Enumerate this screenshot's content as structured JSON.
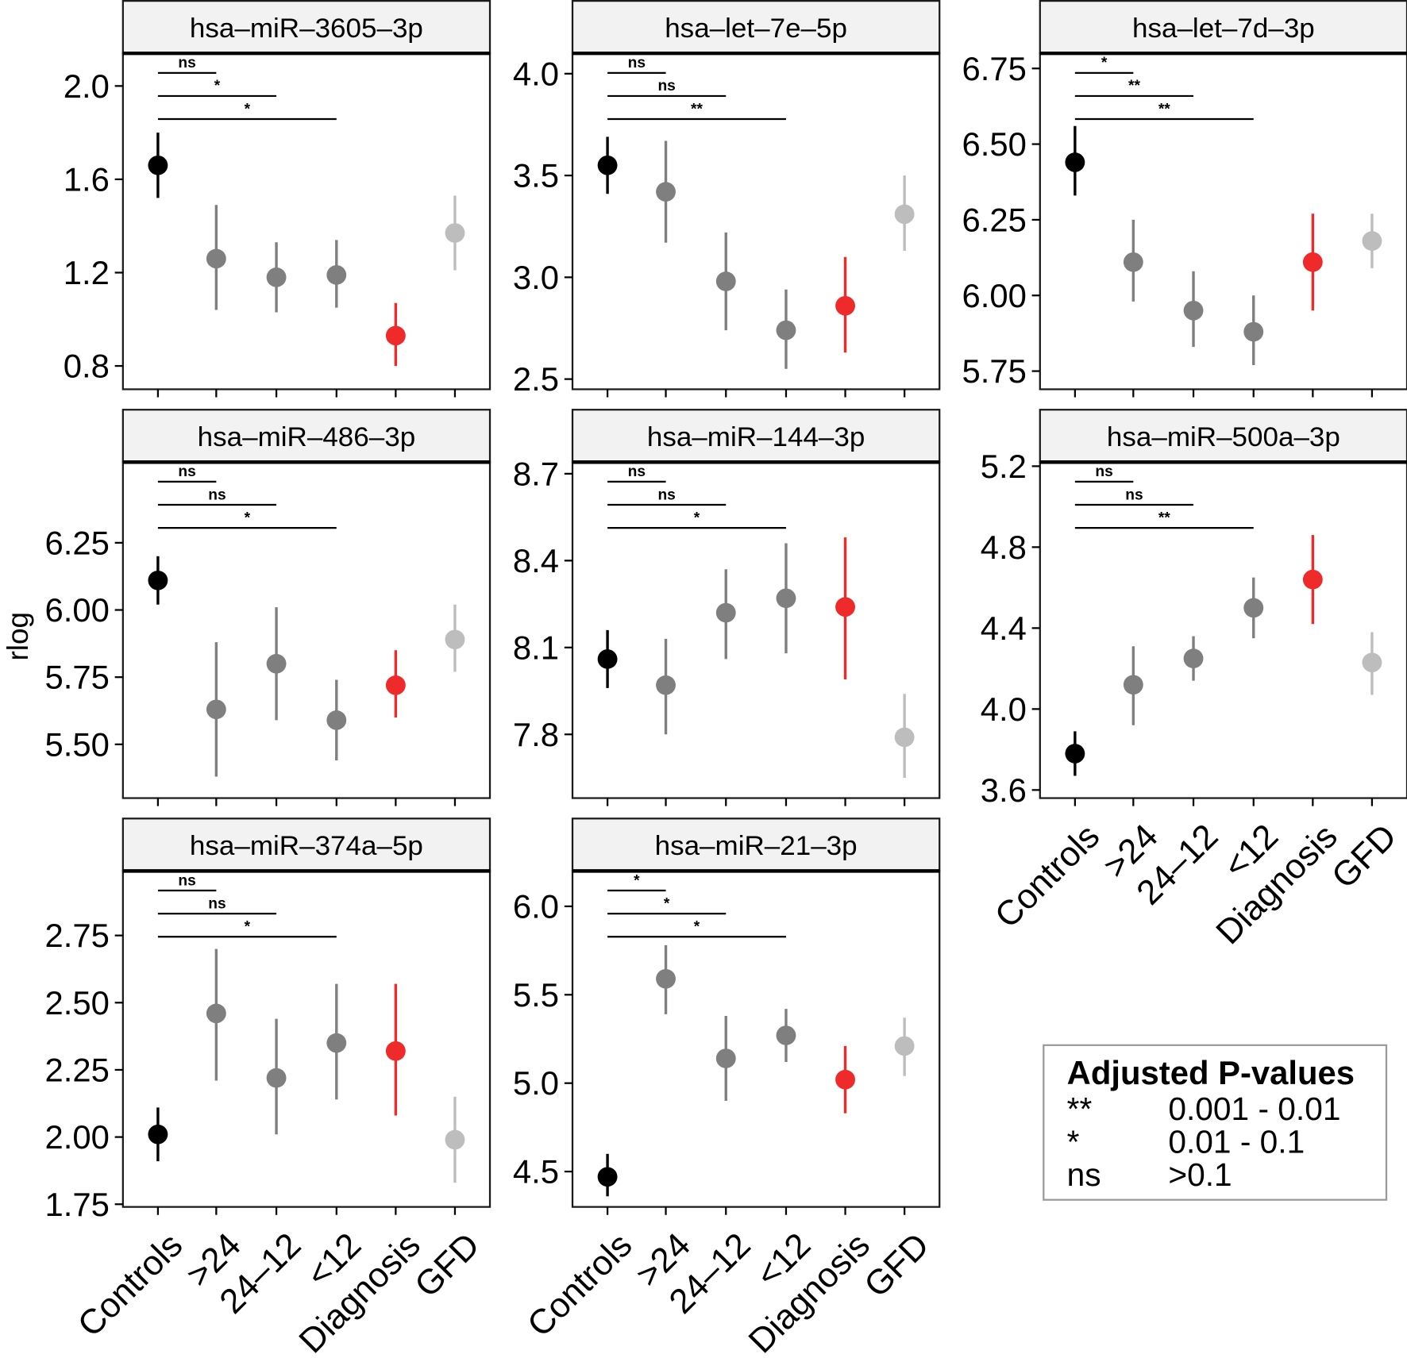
{
  "chart_data": {
    "type": "pointrange-facets",
    "y_axis_title": "rlog",
    "groups": [
      "Controls",
      ">24",
      "24–12",
      "<12",
      "Diagnosis",
      "GFD"
    ],
    "group_colors": [
      "#000000",
      "#7f7f7f",
      "#7f7f7f",
      "#7f7f7f",
      "#ee2a2a",
      "#bdbdbd"
    ],
    "panels": [
      {
        "title": "hsa–miR–3605–3p",
        "ylim": [
          0.7,
          2.14
        ],
        "yticks": [
          0.8,
          1.2,
          1.6,
          2.0
        ],
        "ytick_labels": [
          "0.8",
          "1.2",
          "1.6",
          "2.0"
        ],
        "points": [
          {
            "group": "Controls",
            "value": 1.66,
            "lower": 1.52,
            "upper": 1.8
          },
          {
            "group": ">24",
            "value": 1.26,
            "lower": 1.04,
            "upper": 1.49
          },
          {
            "group": "24–12",
            "value": 1.18,
            "lower": 1.03,
            "upper": 1.33
          },
          {
            "group": "<12",
            "value": 1.19,
            "lower": 1.05,
            "upper": 1.34
          },
          {
            "group": "Diagnosis",
            "value": 0.93,
            "lower": 0.8,
            "upper": 1.07
          },
          {
            "group": "GFD",
            "value": 1.37,
            "lower": 1.21,
            "upper": 1.53
          }
        ],
        "significance": [
          {
            "from": "Controls",
            "to": ">24",
            "label": "ns"
          },
          {
            "from": "Controls",
            "to": "24–12",
            "label": "*"
          },
          {
            "from": "Controls",
            "to": "<12",
            "label": "*"
          }
        ]
      },
      {
        "title": "hsa–let–7e–5p",
        "ylim": [
          2.45,
          4.1
        ],
        "yticks": [
          2.5,
          3.0,
          3.5,
          4.0
        ],
        "ytick_labels": [
          "2.5",
          "3.0",
          "3.5",
          "4.0"
        ],
        "points": [
          {
            "group": "Controls",
            "value": 3.55,
            "lower": 3.41,
            "upper": 3.69
          },
          {
            "group": ">24",
            "value": 3.42,
            "lower": 3.17,
            "upper": 3.67
          },
          {
            "group": "24–12",
            "value": 2.98,
            "lower": 2.74,
            "upper": 3.22
          },
          {
            "group": "<12",
            "value": 2.74,
            "lower": 2.55,
            "upper": 2.94
          },
          {
            "group": "Diagnosis",
            "value": 2.86,
            "lower": 2.63,
            "upper": 3.1
          },
          {
            "group": "GFD",
            "value": 3.31,
            "lower": 3.13,
            "upper": 3.5
          }
        ],
        "significance": [
          {
            "from": "Controls",
            "to": ">24",
            "label": "ns"
          },
          {
            "from": "Controls",
            "to": "24–12",
            "label": "ns"
          },
          {
            "from": "Controls",
            "to": "<12",
            "label": "**"
          }
        ]
      },
      {
        "title": "hsa–let–7d–3p",
        "ylim": [
          5.69,
          6.8
        ],
        "yticks": [
          5.75,
          6.0,
          6.25,
          6.5,
          6.75
        ],
        "ytick_labels": [
          "5.75",
          "6.00",
          "6.25",
          "6.50",
          "6.75"
        ],
        "points": [
          {
            "group": "Controls",
            "value": 6.44,
            "lower": 6.33,
            "upper": 6.56
          },
          {
            "group": ">24",
            "value": 6.11,
            "lower": 5.98,
            "upper": 6.25
          },
          {
            "group": "24–12",
            "value": 5.95,
            "lower": 5.83,
            "upper": 6.08
          },
          {
            "group": "<12",
            "value": 5.88,
            "lower": 5.77,
            "upper": 6.0
          },
          {
            "group": "Diagnosis",
            "value": 6.11,
            "lower": 5.95,
            "upper": 6.27
          },
          {
            "group": "GFD",
            "value": 6.18,
            "lower": 6.09,
            "upper": 6.27
          }
        ],
        "significance": [
          {
            "from": "Controls",
            "to": ">24",
            "label": "*"
          },
          {
            "from": "Controls",
            "to": "24–12",
            "label": "**"
          },
          {
            "from": "Controls",
            "to": "<12",
            "label": "**"
          }
        ]
      },
      {
        "title": "hsa–miR–486–3p",
        "ylim": [
          5.3,
          6.55
        ],
        "yticks": [
          5.5,
          5.75,
          6.0,
          6.25
        ],
        "ytick_labels": [
          "5.50",
          "5.75",
          "6.00",
          "6.25"
        ],
        "points": [
          {
            "group": "Controls",
            "value": 6.11,
            "lower": 6.02,
            "upper": 6.2
          },
          {
            "group": ">24",
            "value": 5.63,
            "lower": 5.38,
            "upper": 5.88
          },
          {
            "group": "24–12",
            "value": 5.8,
            "lower": 5.59,
            "upper": 6.01
          },
          {
            "group": "<12",
            "value": 5.59,
            "lower": 5.44,
            "upper": 5.74
          },
          {
            "group": "Diagnosis",
            "value": 5.72,
            "lower": 5.6,
            "upper": 5.85
          },
          {
            "group": "GFD",
            "value": 5.89,
            "lower": 5.77,
            "upper": 6.02
          }
        ],
        "significance": [
          {
            "from": "Controls",
            "to": ">24",
            "label": "ns"
          },
          {
            "from": "Controls",
            "to": "24–12",
            "label": "ns"
          },
          {
            "from": "Controls",
            "to": "<12",
            "label": "*"
          }
        ]
      },
      {
        "title": "hsa–miR–144–3p",
        "ylim": [
          7.58,
          8.74
        ],
        "yticks": [
          7.8,
          8.1,
          8.4,
          8.7
        ],
        "ytick_labels": [
          "7.8",
          "8.1",
          "8.4",
          "8.7"
        ],
        "points": [
          {
            "group": "Controls",
            "value": 8.06,
            "lower": 7.96,
            "upper": 8.16
          },
          {
            "group": ">24",
            "value": 7.97,
            "lower": 7.8,
            "upper": 8.13
          },
          {
            "group": "24–12",
            "value": 8.22,
            "lower": 8.06,
            "upper": 8.37
          },
          {
            "group": "<12",
            "value": 8.27,
            "lower": 8.08,
            "upper": 8.46
          },
          {
            "group": "Diagnosis",
            "value": 8.24,
            "lower": 7.99,
            "upper": 8.48
          },
          {
            "group": "GFD",
            "value": 7.79,
            "lower": 7.65,
            "upper": 7.94
          }
        ],
        "significance": [
          {
            "from": "Controls",
            "to": ">24",
            "label": "ns"
          },
          {
            "from": "Controls",
            "to": "24–12",
            "label": "ns"
          },
          {
            "from": "Controls",
            "to": "<12",
            "label": "*"
          }
        ]
      },
      {
        "title": "hsa–miR–500a–3p",
        "ylim": [
          3.56,
          5.22
        ],
        "yticks": [
          3.6,
          4.0,
          4.4,
          4.8,
          5.2
        ],
        "ytick_labels": [
          "3.6",
          "4.0",
          "4.4",
          "4.8",
          "5.2"
        ],
        "points": [
          {
            "group": "Controls",
            "value": 3.78,
            "lower": 3.67,
            "upper": 3.89
          },
          {
            "group": ">24",
            "value": 4.12,
            "lower": 3.92,
            "upper": 4.31
          },
          {
            "group": "24–12",
            "value": 4.25,
            "lower": 4.14,
            "upper": 4.36
          },
          {
            "group": "<12",
            "value": 4.5,
            "lower": 4.35,
            "upper": 4.65
          },
          {
            "group": "Diagnosis",
            "value": 4.64,
            "lower": 4.42,
            "upper": 4.86
          },
          {
            "group": "GFD",
            "value": 4.23,
            "lower": 4.07,
            "upper": 4.38
          }
        ],
        "significance": [
          {
            "from": "Controls",
            "to": ">24",
            "label": "ns"
          },
          {
            "from": "Controls",
            "to": "24–12",
            "label": "ns"
          },
          {
            "from": "Controls",
            "to": "<12",
            "label": "**"
          }
        ]
      },
      {
        "title": "hsa–miR–374a–5p",
        "ylim": [
          1.74,
          2.99
        ],
        "yticks": [
          1.75,
          2.0,
          2.25,
          2.5,
          2.75
        ],
        "ytick_labels": [
          "1.75",
          "2.00",
          "2.25",
          "2.50",
          "2.75"
        ],
        "points": [
          {
            "group": "Controls",
            "value": 2.01,
            "lower": 1.91,
            "upper": 2.11
          },
          {
            "group": ">24",
            "value": 2.46,
            "lower": 2.21,
            "upper": 2.7
          },
          {
            "group": "24–12",
            "value": 2.22,
            "lower": 2.01,
            "upper": 2.44
          },
          {
            "group": "<12",
            "value": 2.35,
            "lower": 2.14,
            "upper": 2.57
          },
          {
            "group": "Diagnosis",
            "value": 2.32,
            "lower": 2.08,
            "upper": 2.57
          },
          {
            "group": "GFD",
            "value": 1.99,
            "lower": 1.83,
            "upper": 2.15
          }
        ],
        "significance": [
          {
            "from": "Controls",
            "to": ">24",
            "label": "ns"
          },
          {
            "from": "Controls",
            "to": "24–12",
            "label": "ns"
          },
          {
            "from": "Controls",
            "to": "<12",
            "label": "*"
          }
        ]
      },
      {
        "title": "hsa–miR–21–3p",
        "ylim": [
          4.3,
          6.2
        ],
        "yticks": [
          4.5,
          5.0,
          5.5,
          6.0
        ],
        "ytick_labels": [
          "4.5",
          "5.0",
          "5.5",
          "6.0"
        ],
        "points": [
          {
            "group": "Controls",
            "value": 4.47,
            "lower": 4.36,
            "upper": 4.6
          },
          {
            "group": ">24",
            "value": 5.59,
            "lower": 5.39,
            "upper": 5.78
          },
          {
            "group": "24–12",
            "value": 5.14,
            "lower": 4.9,
            "upper": 5.38
          },
          {
            "group": "<12",
            "value": 5.27,
            "lower": 5.12,
            "upper": 5.42
          },
          {
            "group": "Diagnosis",
            "value": 5.02,
            "lower": 4.83,
            "upper": 5.21
          },
          {
            "group": "GFD",
            "value": 5.21,
            "lower": 5.04,
            "upper": 5.37
          }
        ],
        "significance": [
          {
            "from": "Controls",
            "to": ">24",
            "label": "*"
          },
          {
            "from": "Controls",
            "to": "24–12",
            "label": "*"
          },
          {
            "from": "Controls",
            "to": "<12",
            "label": "*"
          }
        ]
      }
    ],
    "legend": {
      "title": "Adjusted P-values",
      "entries": [
        {
          "symbol": "**",
          "range": "0.001 - 0.01"
        },
        {
          "symbol": "*",
          "range": "0.01 - 0.1"
        },
        {
          "symbol": "ns",
          "range": ">0.1"
        }
      ]
    }
  }
}
